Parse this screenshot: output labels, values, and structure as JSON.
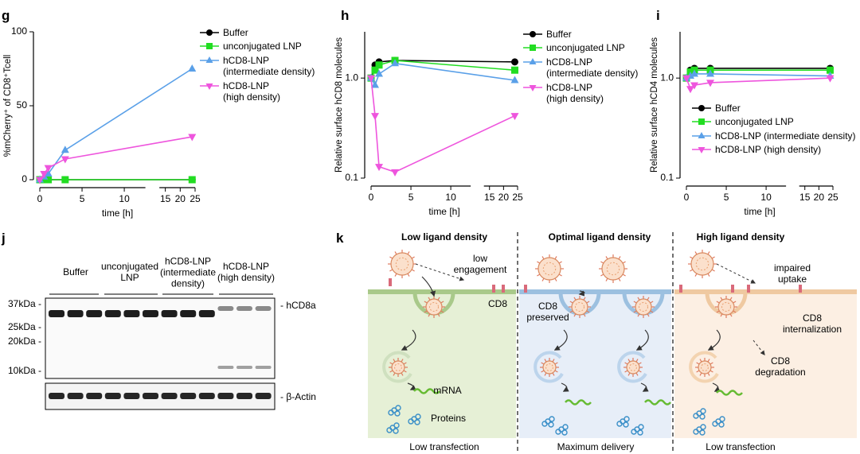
{
  "chart_data": [
    {
      "type": "line",
      "panel": "g",
      "ylabel": "%mCherry⁺ of CD8⁺Tcell",
      "xlabel": "time [h]",
      "x": [
        0,
        0.5,
        1,
        3,
        24
      ],
      "xlim": [
        0,
        25
      ],
      "x_break": [
        12.5,
        13
      ],
      "xticks": [
        0,
        5,
        10,
        15,
        20,
        25
      ],
      "ylim": [
        0,
        100
      ],
      "yticks": [
        0,
        50,
        100
      ],
      "log_y": false,
      "legend": "right",
      "series": [
        {
          "name": "Buffer",
          "color": "#000000",
          "marker": "circle",
          "values": [
            0,
            0,
            0,
            0,
            0
          ]
        },
        {
          "name": "unconjugated LNP",
          "color": "#22dd22",
          "marker": "square",
          "values": [
            0,
            0,
            0,
            0,
            0
          ]
        },
        {
          "name": "hCD8-LNP\n(intermediate density)",
          "color": "#5aa0e8",
          "marker": "triangle-up",
          "values": [
            0,
            2,
            4,
            20,
            75
          ]
        },
        {
          "name": "hCD8-LNP\n(high density)",
          "color": "#ee55dd",
          "marker": "triangle-down",
          "values": [
            0,
            4,
            8,
            14,
            29
          ]
        }
      ]
    },
    {
      "type": "line",
      "panel": "h",
      "ylabel": "Relative surface hCD8 molecules",
      "xlabel": "time [h]",
      "x": [
        0,
        0.5,
        1,
        3,
        24
      ],
      "xlim": [
        0,
        25
      ],
      "x_break": [
        12.5,
        13
      ],
      "xticks": [
        0,
        5,
        10,
        15,
        20,
        25
      ],
      "ylim": [
        0.1,
        2.9
      ],
      "yticks": [
        0.1,
        {
          "value": 1,
          "label": "1.0"
        }
      ],
      "log_y": true,
      "legend": "right",
      "series": [
        {
          "name": "Buffer",
          "color": "#000000",
          "marker": "circle",
          "values": [
            1.0,
            1.35,
            1.45,
            1.5,
            1.45
          ]
        },
        {
          "name": "unconjugated LNP",
          "color": "#22dd22",
          "marker": "square",
          "values": [
            1.0,
            1.2,
            1.35,
            1.5,
            1.2
          ]
        },
        {
          "name": "hCD8-LNP\n(intermediate density)",
          "color": "#5aa0e8",
          "marker": "triangle-up",
          "values": [
            1.0,
            0.85,
            1.1,
            1.4,
            0.95
          ]
        },
        {
          "name": "hCD8-LNP\n(high density)",
          "color": "#ee55dd",
          "marker": "triangle-down",
          "values": [
            1.0,
            0.42,
            0.13,
            0.115,
            0.42
          ]
        }
      ]
    },
    {
      "type": "line",
      "panel": "i",
      "ylabel": "Relative surface hCD4 molecules",
      "xlabel": "time [h]",
      "x": [
        0,
        0.5,
        1,
        3,
        24
      ],
      "xlim": [
        0,
        25
      ],
      "x_break": [
        12.5,
        13
      ],
      "xticks": [
        0,
        5,
        10,
        15,
        20,
        25
      ],
      "ylim": [
        0.1,
        2.9
      ],
      "yticks": [
        0.1,
        {
          "value": 1,
          "label": "1.0"
        }
      ],
      "log_y": true,
      "legend": "inside-lower",
      "series": [
        {
          "name": "Buffer",
          "color": "#000000",
          "marker": "circle",
          "values": [
            1.0,
            1.2,
            1.25,
            1.25,
            1.25
          ]
        },
        {
          "name": "unconjugated LNP",
          "color": "#22dd22",
          "marker": "square",
          "values": [
            1.0,
            1.15,
            1.2,
            1.2,
            1.2
          ]
        },
        {
          "name": "hCD8-LNP (intermediate density)",
          "color": "#5aa0e8",
          "marker": "triangle-up",
          "values": [
            1.0,
            1.05,
            1.1,
            1.1,
            1.05
          ]
        },
        {
          "name": "hCD8-LNP (high density)",
          "color": "#ee55dd",
          "marker": "triangle-down",
          "values": [
            1.0,
            0.78,
            0.85,
            0.9,
            1.0
          ]
        }
      ]
    }
  ],
  "blot": {
    "panel": "j",
    "lanes": [
      "Buffer",
      "unconjugated\nLNP",
      "hCD8-LNP\n(intermediate\ndensity)",
      "hCD8-LNP\n(high density)"
    ],
    "mw_markers": [
      "37kDa -",
      "25kDa -",
      "20kDa -",
      "10kDa -"
    ],
    "bands": [
      "- hCD8a",
      "- β-Actin"
    ]
  },
  "diagram": {
    "panel": "k",
    "columns": [
      {
        "title": "Low ligand density",
        "result": "Low transfection"
      },
      {
        "title": "Optimal ligand density",
        "result": "Maximum delivery"
      },
      {
        "title": "High ligand density",
        "result": "Low transfection"
      }
    ],
    "labels": {
      "low_engagement": "low\nengagement",
      "cd8": "CD8",
      "cd8_preserved": "CD8\npreserved",
      "impaired_uptake": "impaired uptake",
      "internalization": "CD8\ninternalization",
      "degradation": "CD8\ndegradation",
      "mrna": "mRNA",
      "proteins": "Proteins"
    }
  }
}
